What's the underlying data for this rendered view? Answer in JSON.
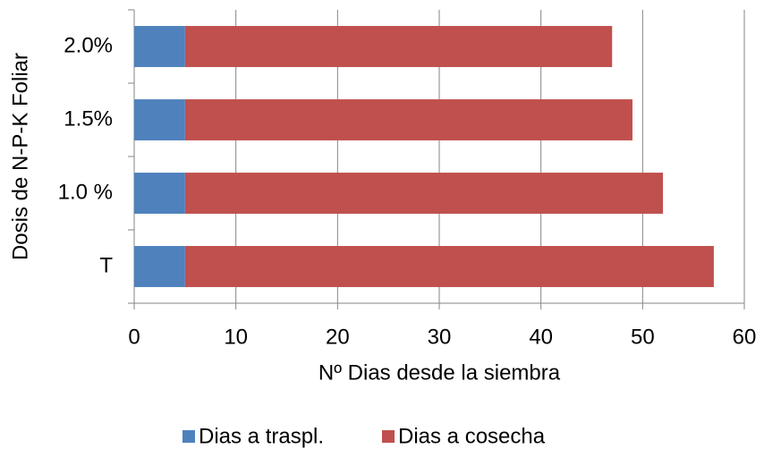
{
  "chart_data": {
    "type": "stacked-barh",
    "categories": [
      "T",
      "1.0 %",
      "1.5%",
      "2.0%"
    ],
    "series": [
      {
        "name": "Dias a traspl.",
        "color": "#4f81bd",
        "values": [
          5,
          5,
          5,
          5
        ]
      },
      {
        "name": "Dias a cosecha",
        "color": "#c0504d",
        "values": [
          52,
          47,
          44,
          42
        ]
      }
    ],
    "xlabel": "Nº Dias desde la siembra",
    "ylabel": "Dosis de N-P-K Foliar",
    "xlim": [
      0,
      60
    ],
    "xticks": [
      0,
      10,
      20,
      30,
      40,
      50,
      60
    ],
    "grid": true,
    "legend": "bottom"
  }
}
